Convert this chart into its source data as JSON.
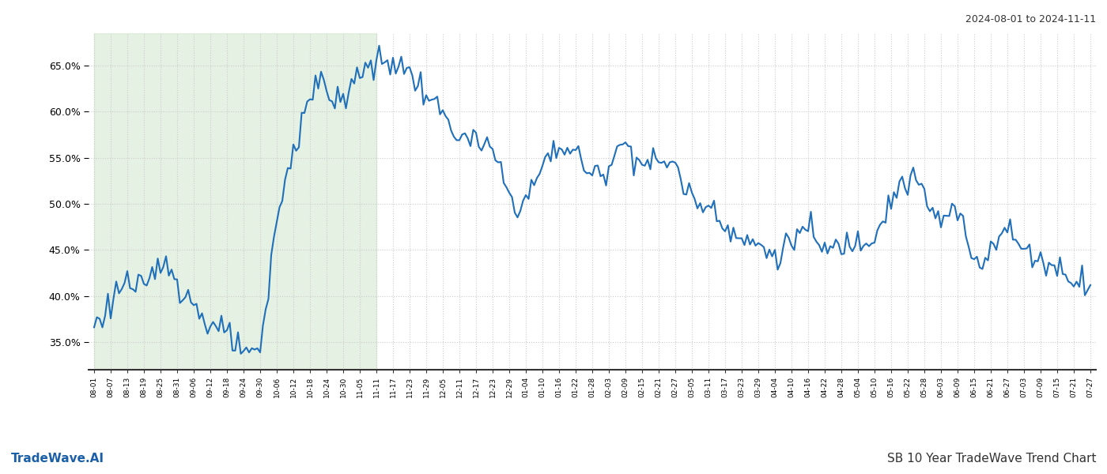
{
  "title_top_right": "2024-08-01 to 2024-11-11",
  "title_bottom_right": "SB 10 Year TradeWave Trend Chart",
  "title_bottom_left": "TradeWave.AI",
  "line_color": "#1f6fba",
  "line_width": 1.5,
  "shaded_region_color": "#d4e8d0",
  "shaded_region_alpha": 0.6,
  "shaded_start": "2024-08-01",
  "shaded_end": "2024-11-11",
  "ylim": [
    0.32,
    0.685
  ],
  "yticks": [
    0.35,
    0.4,
    0.45,
    0.5,
    0.55,
    0.6,
    0.65
  ],
  "background_color": "#ffffff",
  "grid_color": "#cccccc",
  "axis_color": "#333333",
  "dates": [
    "2024-08-01",
    "2024-08-07",
    "2024-08-13",
    "2024-08-19",
    "2024-08-25",
    "2024-08-31",
    "2024-09-06",
    "2024-09-12",
    "2024-09-18",
    "2024-09-24",
    "2024-09-30",
    "2024-10-06",
    "2024-10-12",
    "2024-10-18",
    "2024-10-24",
    "2024-10-30",
    "2024-11-05",
    "2024-11-11",
    "2024-11-17",
    "2024-11-23",
    "2024-11-29",
    "2024-12-05",
    "2024-12-11",
    "2024-12-17",
    "2024-12-23",
    "2024-12-29",
    "2025-01-04",
    "2025-01-10",
    "2025-01-16",
    "2025-01-22",
    "2025-01-28",
    "2025-02-03",
    "2025-02-09",
    "2025-02-15",
    "2025-02-21",
    "2025-02-27",
    "2025-03-05",
    "2025-03-11",
    "2025-03-17",
    "2025-03-23",
    "2025-03-29",
    "2025-04-04",
    "2025-04-10",
    "2025-04-16",
    "2025-04-22",
    "2025-04-28",
    "2025-05-04",
    "2025-05-10",
    "2025-05-16",
    "2025-05-22",
    "2025-05-28",
    "2025-06-03",
    "2025-06-09",
    "2025-06-15",
    "2025-06-21",
    "2025-06-27",
    "2025-07-03",
    "2025-07-09",
    "2025-07-15",
    "2025-07-21",
    "2025-07-27"
  ],
  "values": [
    0.366,
    0.395,
    0.415,
    0.405,
    0.435,
    0.42,
    0.39,
    0.37,
    0.355,
    0.34,
    0.345,
    0.48,
    0.555,
    0.62,
    0.625,
    0.61,
    0.645,
    0.65,
    0.655,
    0.64,
    0.62,
    0.595,
    0.575,
    0.565,
    0.555,
    0.51,
    0.505,
    0.54,
    0.56,
    0.555,
    0.53,
    0.545,
    0.565,
    0.545,
    0.545,
    0.54,
    0.505,
    0.5,
    0.48,
    0.46,
    0.455,
    0.445,
    0.46,
    0.47,
    0.45,
    0.455,
    0.46,
    0.47,
    0.505,
    0.525,
    0.51,
    0.48,
    0.49,
    0.44,
    0.455,
    0.47,
    0.45,
    0.44,
    0.43,
    0.42,
    0.415
  ]
}
